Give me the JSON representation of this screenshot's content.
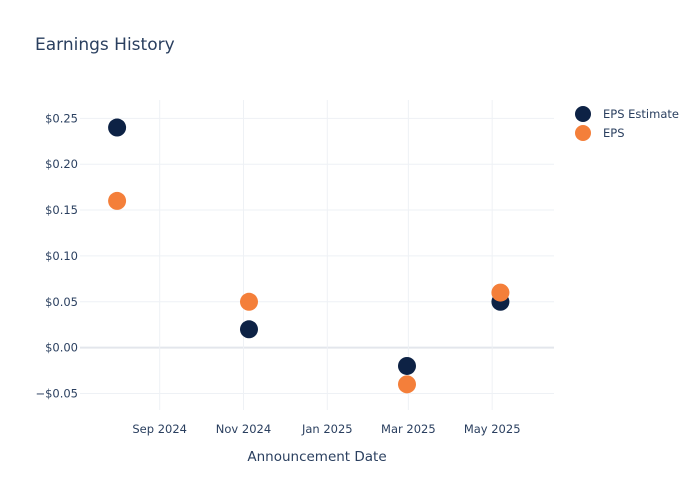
{
  "chart_data": {
    "type": "scatter",
    "title": "Earnings History",
    "xlabel": "Announcement Date",
    "ylabel": "",
    "x_type": "date",
    "xlim": [
      "2024-07-05",
      "2025-06-15"
    ],
    "ylim": [
      -0.068,
      0.27
    ],
    "x_ticks": [
      {
        "date": "2024-09-01",
        "label": "Sep 2024"
      },
      {
        "date": "2024-11-01",
        "label": "Nov 2024"
      },
      {
        "date": "2025-01-01",
        "label": "Jan 2025"
      },
      {
        "date": "2025-03-01",
        "label": "Mar 2025"
      },
      {
        "date": "2025-05-01",
        "label": "May 2025"
      }
    ],
    "y_ticks": [
      {
        "value": 0.25,
        "label": "$0.25"
      },
      {
        "value": 0.2,
        "label": "$0.20"
      },
      {
        "value": 0.15,
        "label": "$0.15"
      },
      {
        "value": 0.1,
        "label": "$0.10"
      },
      {
        "value": 0.05,
        "label": "$0.05"
      },
      {
        "value": 0.0,
        "label": "$0.00"
      },
      {
        "value": -0.05,
        "label": "−$0.05"
      }
    ],
    "grid": true,
    "legend_position": "top-right",
    "series": [
      {
        "name": "EPS Estimate",
        "color": "#0d2245",
        "points": [
          {
            "x": "2024-08-01",
            "y": 0.24
          },
          {
            "x": "2024-11-05",
            "y": 0.02
          },
          {
            "x": "2025-02-28",
            "y": -0.02
          },
          {
            "x": "2025-05-07",
            "y": 0.05
          }
        ]
      },
      {
        "name": "EPS",
        "color": "#f47f3a",
        "points": [
          {
            "x": "2024-08-01",
            "y": 0.16
          },
          {
            "x": "2024-11-05",
            "y": 0.05
          },
          {
            "x": "2025-02-28",
            "y": -0.04
          },
          {
            "x": "2025-05-07",
            "y": 0.06
          }
        ]
      }
    ]
  }
}
